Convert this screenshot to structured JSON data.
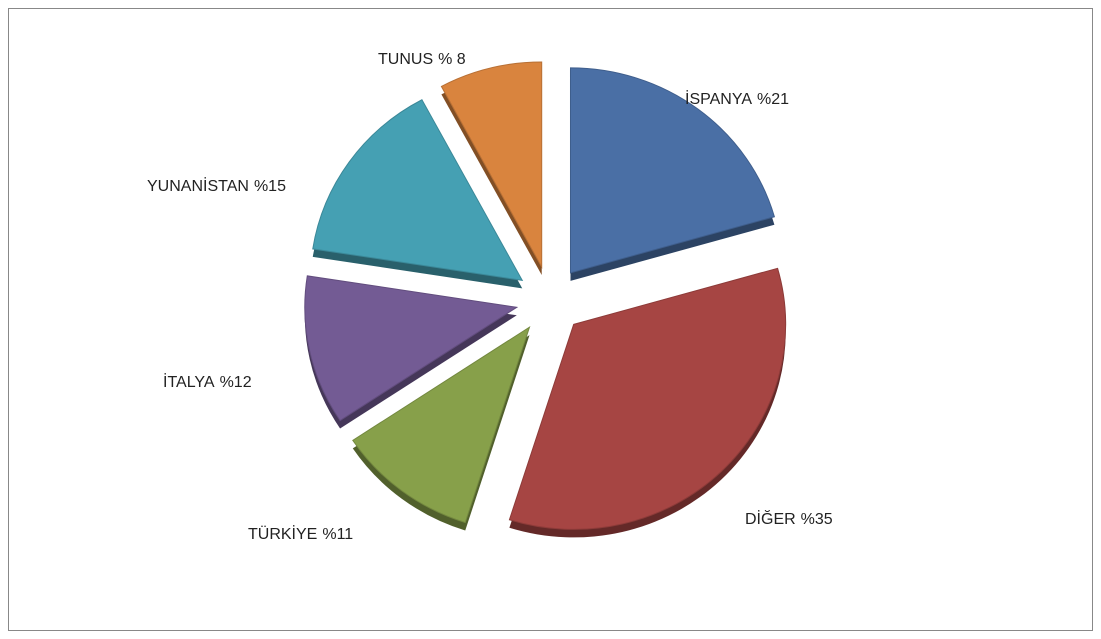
{
  "chart_data": {
    "type": "pie",
    "categories": [
      "İSPANYA",
      "DİĞER",
      "TÜRKİYE",
      "İTALYA",
      "YUNANİSTAN",
      "TUNUS"
    ],
    "values": [
      21,
      35,
      11,
      12,
      15,
      8
    ],
    "value_labels": [
      "%21",
      "%35",
      "%11",
      "%12",
      "%15",
      "% 8"
    ],
    "colors": [
      "#4a6fa5",
      "#a64543",
      "#87a04a",
      "#735b94",
      "#45a0b3",
      "#d9843e"
    ]
  }
}
